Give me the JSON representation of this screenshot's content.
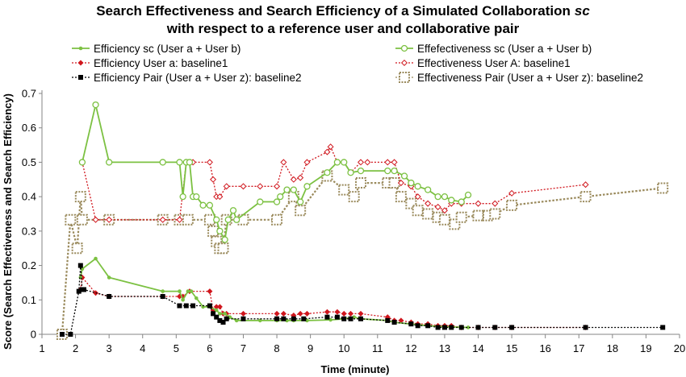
{
  "chart_data": {
    "type": "line",
    "title_line1": "Search Effectiveness and Search Efficiency of a Simulated Collaboration",
    "title_sc": "sc",
    "title_line2": "with respect to a reference user and collaborative pair",
    "xlabel": "Time (minute)",
    "ylabel": "Score (Search Effectiveness and Search Efficiency)",
    "xlim": [
      1,
      20
    ],
    "ylim": [
      0,
      0.7
    ],
    "x_ticks": [
      1,
      2,
      3,
      4,
      5,
      6,
      7,
      8,
      9,
      10,
      11,
      12,
      13,
      14,
      15,
      16,
      17,
      18,
      19,
      20
    ],
    "x_tick_labels": [
      "1",
      "2",
      "3",
      "4",
      "5",
      "6",
      "7",
      "8",
      "9",
      "10",
      "11",
      "12",
      "13",
      "14",
      "15",
      "16",
      "17",
      "18",
      "19",
      "20"
    ],
    "y_ticks": [
      0,
      0.1,
      0.2,
      0.3,
      0.4,
      0.5,
      0.6,
      0.7
    ],
    "y_tick_labels": [
      "0",
      "0.1",
      "0.2",
      "0.3",
      "0.4",
      "0.5",
      "0.6",
      "0.7"
    ],
    "grid": false,
    "legend_position": "top",
    "series": [
      {
        "name": "Efficiency sc (User a + User b)",
        "color": "#7cc142",
        "line": "solid",
        "marker": "dot",
        "x": [
          2.15,
          2.2,
          2.6,
          3.0,
          4.6,
          5.1,
          5.2,
          5.35,
          5.45,
          5.6,
          5.8,
          6.0,
          6.2,
          6.3,
          6.45,
          6.6,
          6.8,
          7.5,
          8.0,
          8.3,
          8.5,
          8.9,
          9.6,
          10.0,
          10.3,
          10.5,
          11.3,
          11.5,
          12.0,
          12.5,
          13.0,
          13.7
        ],
        "y": [
          0.165,
          0.19,
          0.22,
          0.165,
          0.125,
          0.125,
          0.1,
          0.125,
          0.125,
          0.105,
          0.08,
          0.08,
          0.07,
          0.06,
          0.06,
          0.05,
          0.04,
          0.04,
          0.04,
          0.04,
          0.04,
          0.04,
          0.042,
          0.045,
          0.05,
          0.045,
          0.04,
          0.035,
          0.03,
          0.025,
          0.022,
          0.02
        ]
      },
      {
        "name": "Effefectiveness sc (User a + User b)",
        "color": "#7cc142",
        "line": "solid",
        "marker": "open-circle",
        "x": [
          2.2,
          2.6,
          3.0,
          4.6,
          5.1,
          5.2,
          5.3,
          5.4,
          5.5,
          5.6,
          5.8,
          6.0,
          6.2,
          6.3,
          6.45,
          6.55,
          6.7,
          6.8,
          7.5,
          8.0,
          8.1,
          8.3,
          8.5,
          8.7,
          8.9,
          9.5,
          9.8,
          10.0,
          10.2,
          10.5,
          11.3,
          11.5,
          11.8,
          12.0,
          12.2,
          12.5,
          12.8,
          13.0,
          13.2,
          13.5,
          13.7
        ],
        "y": [
          0.5,
          0.667,
          0.5,
          0.5,
          0.5,
          0.4,
          0.5,
          0.5,
          0.4,
          0.4,
          0.375,
          0.375,
          0.333,
          0.3,
          0.275,
          0.333,
          0.36,
          0.333,
          0.385,
          0.385,
          0.4,
          0.42,
          0.42,
          0.385,
          0.43,
          0.47,
          0.5,
          0.5,
          0.47,
          0.475,
          0.475,
          0.475,
          0.46,
          0.44,
          0.43,
          0.42,
          0.4,
          0.4,
          0.39,
          0.385,
          0.405
        ]
      },
      {
        "name": "Efficiency User a: baseline1",
        "color": "#d0161d",
        "line": "dotted",
        "marker": "diamond",
        "x": [
          2.15,
          2.2,
          2.6,
          3.0,
          4.6,
          5.1,
          5.2,
          5.4,
          6.0,
          6.1,
          6.2,
          6.3,
          6.4,
          6.5,
          7.0,
          8.0,
          8.2,
          8.5,
          8.7,
          8.9,
          9.5,
          9.8,
          10.0,
          10.2,
          10.5,
          11.3,
          11.5,
          11.7,
          12.0,
          12.2,
          12.5,
          12.8,
          13.0,
          13.2,
          13.5,
          14.0,
          14.5,
          15.0,
          17.2
        ],
        "y": [
          0.13,
          0.165,
          0.12,
          0.11,
          0.11,
          0.11,
          0.11,
          0.125,
          0.125,
          0.07,
          0.08,
          0.08,
          0.06,
          0.06,
          0.06,
          0.06,
          0.06,
          0.055,
          0.06,
          0.06,
          0.065,
          0.065,
          0.06,
          0.06,
          0.06,
          0.05,
          0.04,
          0.04,
          0.035,
          0.03,
          0.03,
          0.025,
          0.025,
          0.025,
          0.02,
          0.02,
          0.02,
          0.02,
          0.02
        ]
      },
      {
        "name": "Effectiveness User A: baseline1",
        "color": "#d0161d",
        "line": "dotted",
        "marker": "open-diamond",
        "x": [
          2.2,
          2.6,
          3.0,
          4.6,
          5.1,
          5.3,
          5.5,
          6.0,
          6.1,
          6.2,
          6.3,
          6.5,
          7.0,
          7.5,
          8.0,
          8.2,
          8.5,
          8.7,
          8.9,
          9.5,
          9.6,
          9.8,
          10.0,
          10.2,
          10.5,
          10.7,
          11.3,
          11.5,
          11.7,
          12.0,
          12.2,
          12.5,
          12.8,
          13.0,
          13.2,
          13.5,
          14.0,
          14.5,
          15.0,
          17.2
        ],
        "y": [
          0.5,
          0.333,
          0.333,
          0.333,
          0.333,
          0.5,
          0.5,
          0.5,
          0.45,
          0.4,
          0.4,
          0.43,
          0.43,
          0.43,
          0.43,
          0.5,
          0.45,
          0.455,
          0.5,
          0.53,
          0.545,
          0.5,
          0.5,
          0.47,
          0.5,
          0.5,
          0.5,
          0.5,
          0.44,
          0.43,
          0.4,
          0.38,
          0.37,
          0.36,
          0.38,
          0.38,
          0.38,
          0.38,
          0.41,
          0.435
        ]
      },
      {
        "name": "Efficiency Pair (User a + User z): baseline2",
        "color": "#000000",
        "line": "dotted",
        "marker": "square",
        "x": [
          1.6,
          1.85,
          2.1,
          2.15,
          2.2,
          2.25,
          3.0,
          4.6,
          5.1,
          5.3,
          5.5,
          6.0,
          6.1,
          6.2,
          6.3,
          6.4,
          6.5,
          7.0,
          8.0,
          8.2,
          8.5,
          8.8,
          9.5,
          9.8,
          10.0,
          10.2,
          10.5,
          11.3,
          11.5,
          12.0,
          12.2,
          12.5,
          12.8,
          13.0,
          13.2,
          13.5,
          14.0,
          14.5,
          15.0,
          17.2,
          19.5
        ],
        "y": [
          0.0,
          0.0,
          0.125,
          0.2,
          0.13,
          0.13,
          0.11,
          0.11,
          0.083,
          0.083,
          0.083,
          0.083,
          0.06,
          0.05,
          0.04,
          0.035,
          0.045,
          0.045,
          0.045,
          0.045,
          0.045,
          0.045,
          0.05,
          0.05,
          0.045,
          0.045,
          0.045,
          0.04,
          0.035,
          0.03,
          0.025,
          0.025,
          0.02,
          0.02,
          0.02,
          0.02,
          0.02,
          0.02,
          0.02,
          0.02,
          0.02
        ]
      },
      {
        "name": "Effectiveness Pair (User a + User z): baseline2",
        "color": "#9a8a5c",
        "line": "dotted",
        "marker": "open-square",
        "x": [
          1.6,
          1.85,
          2.05,
          2.15,
          2.2,
          3.0,
          4.6,
          5.1,
          5.35,
          6.0,
          6.1,
          6.2,
          6.3,
          6.4,
          6.5,
          7.0,
          8.0,
          8.5,
          8.7,
          9.5,
          10.0,
          10.3,
          10.5,
          11.3,
          11.5,
          11.7,
          12.0,
          12.2,
          12.5,
          12.8,
          13.0,
          13.3,
          13.5,
          14.0,
          14.3,
          14.5,
          15.0,
          17.2,
          19.5
        ],
        "y": [
          0.0,
          0.333,
          0.25,
          0.4,
          0.333,
          0.333,
          0.333,
          0.333,
          0.333,
          0.333,
          0.3,
          0.27,
          0.25,
          0.25,
          0.333,
          0.333,
          0.333,
          0.4,
          0.36,
          0.46,
          0.42,
          0.4,
          0.44,
          0.44,
          0.44,
          0.4,
          0.38,
          0.36,
          0.35,
          0.34,
          0.333,
          0.32,
          0.34,
          0.345,
          0.345,
          0.35,
          0.375,
          0.4,
          0.425
        ]
      }
    ]
  }
}
